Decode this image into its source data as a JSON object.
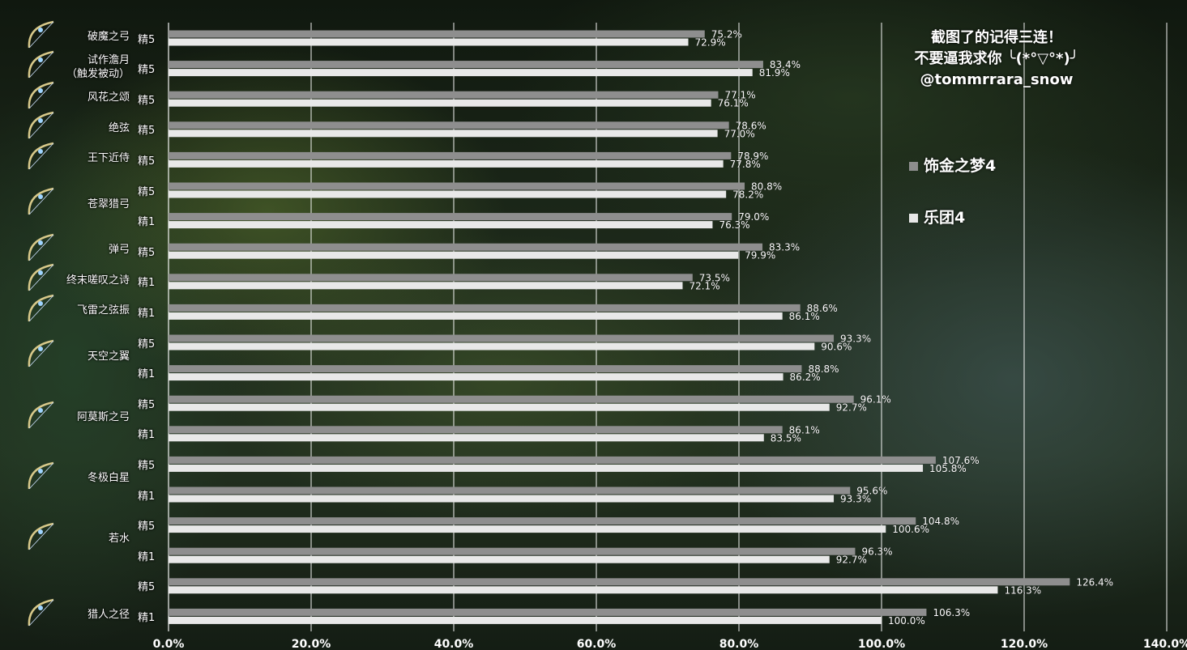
{
  "annotation": {
    "line1": "截图了的记得三连！",
    "line2": "不要逼我求你 ╰(*°▽°*)╯",
    "line3": "@tommrrara_snow"
  },
  "colors": {
    "series1": "#8e8e8e",
    "series2": "#e8e8e8",
    "grid": "#ffffff",
    "text": "#ffffff"
  },
  "chart_data": {
    "type": "bar",
    "orientation": "horizontal",
    "xlim": [
      0,
      140
    ],
    "x_ticks": [
      "0.0%",
      "20.0%",
      "40.0%",
      "60.0%",
      "80.0%",
      "100.0%",
      "120.0%",
      "140.0%"
    ],
    "grid": true,
    "legend_position": "right",
    "series": [
      {
        "name": "饰金之梦4",
        "values": [
          75.2,
          83.4,
          77.1,
          78.6,
          78.9,
          80.8,
          79.0,
          83.3,
          73.5,
          88.6,
          93.3,
          88.8,
          96.1,
          86.1,
          107.6,
          95.6,
          104.8,
          96.3,
          126.4,
          106.3
        ]
      },
      {
        "name": "乐团4",
        "values": [
          72.9,
          81.9,
          76.1,
          77.0,
          77.8,
          78.2,
          76.3,
          79.9,
          72.1,
          86.1,
          90.6,
          86.2,
          92.7,
          83.5,
          105.8,
          93.3,
          100.6,
          92.7,
          116.3,
          100.0
        ]
      }
    ],
    "value_labels_1": [
      "75.2%",
      "83.4%",
      "77.1%",
      "78.6%",
      "78.9%",
      "80.8%",
      "79.0%",
      "83.3%",
      "73.5%",
      "88.6%",
      "93.3%",
      "88.8%",
      "96.1%",
      "86.1%",
      "107.6%",
      "95.6%",
      "104.8%",
      "96.3%",
      "126.4%",
      "106.3%"
    ],
    "value_labels_2": [
      "72.9%",
      "81.9%",
      "76.1%",
      "77.0%",
      "77.8%",
      "78.2%",
      "76.3%",
      "79.9%",
      "72.1%",
      "86.1%",
      "90.6%",
      "86.2%",
      "92.7%",
      "83.5%",
      "105.8%",
      "93.3%",
      "100.6%",
      "92.7%",
      "116.3%",
      "100.0%"
    ],
    "refinements": [
      "精5",
      "精5",
      "精5",
      "精5",
      "精5",
      "精5",
      "精1",
      "精5",
      "精1",
      "精1",
      "精5",
      "精1",
      "精5",
      "精1",
      "精5",
      "精1",
      "精5",
      "精1",
      "精5",
      "精1"
    ],
    "weapons": [
      {
        "name": "破魔之弓",
        "icon": "bow-icon"
      },
      {
        "name": "试作澹月\n（触发被动）",
        "icon": "bow-icon"
      },
      {
        "name": "风花之颂",
        "icon": "bow-icon"
      },
      {
        "name": "绝弦",
        "icon": "bow-icon"
      },
      {
        "name": "王下近侍",
        "icon": "bow-icon"
      },
      {
        "name": "苍翠猎弓",
        "icon": "bow-icon"
      },
      {
        "name": "弹弓",
        "icon": "slingshot-icon"
      },
      {
        "name": "终末嗟叹之诗",
        "icon": "bow-icon"
      },
      {
        "name": "飞雷之弦振",
        "icon": "bow-icon"
      },
      {
        "name": "天空之翼",
        "icon": "bow-icon"
      },
      {
        "name": "阿莫斯之弓",
        "icon": "bow-icon"
      },
      {
        "name": "冬极白星",
        "icon": "bow-icon"
      },
      {
        "name": "若水",
        "icon": "bow-icon"
      },
      {
        "name": "猎人之径",
        "icon": "bow-icon"
      }
    ]
  }
}
